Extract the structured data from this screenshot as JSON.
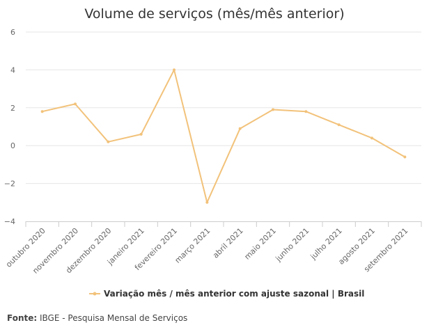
{
  "chart_data": {
    "type": "line",
    "title": "Volume de serviços (mês/mês anterior)",
    "categories": [
      "outubro 2020",
      "novembro 2020",
      "dezembro 2020",
      "janeiro 2021",
      "fevereiro 2021",
      "março 2021",
      "abril 2021",
      "maio 2021",
      "junho 2021",
      "julho 2021",
      "agosto 2021",
      "setembro 2021"
    ],
    "series": [
      {
        "name": "Variação mês / mês anterior com ajuste sazonal | Brasil",
        "values": [
          1.8,
          2.2,
          0.2,
          0.6,
          4.0,
          -3.0,
          0.9,
          1.9,
          1.8,
          1.1,
          0.4,
          -0.6
        ],
        "color": "#f2c27a"
      }
    ],
    "yticks": [
      "6",
      "4",
      "2",
      "0",
      "−2",
      "−4"
    ],
    "ylim": [
      -4,
      6
    ],
    "grid": true,
    "legend_position": "bottom"
  },
  "source": {
    "label": "Fonte:",
    "text": "IBGE - Pesquisa Mensal de Serviços"
  }
}
